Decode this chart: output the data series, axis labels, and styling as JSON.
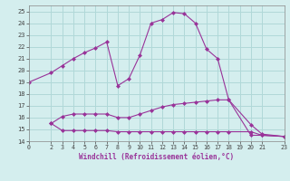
{
  "xlabel": "Windchill (Refroidissement éolien,°C)",
  "background_color": "#d4eeee",
  "grid_color": "#b0d8d8",
  "line_color": "#993399",
  "xlim": [
    0,
    23
  ],
  "ylim": [
    14,
    25.5
  ],
  "yticks": [
    14,
    15,
    16,
    17,
    18,
    19,
    20,
    21,
    22,
    23,
    24,
    25
  ],
  "xticks": [
    0,
    2,
    3,
    4,
    5,
    6,
    7,
    8,
    9,
    10,
    11,
    12,
    13,
    14,
    15,
    16,
    17,
    18,
    19,
    20,
    21,
    23
  ],
  "line1_x": [
    0,
    2,
    3,
    4,
    5,
    6,
    7,
    8,
    9,
    10,
    11,
    12,
    13,
    14,
    15,
    16,
    17,
    18,
    20,
    21,
    23
  ],
  "line1_y": [
    19.0,
    19.8,
    20.4,
    21.0,
    21.5,
    21.9,
    22.4,
    18.7,
    19.3,
    21.3,
    24.0,
    24.3,
    24.9,
    24.8,
    24.0,
    21.8,
    21.0,
    17.5,
    14.5,
    14.5,
    14.4
  ],
  "line2_x": [
    2,
    3,
    4,
    5,
    6,
    7,
    8,
    9,
    10,
    11,
    12,
    13,
    14,
    15,
    16,
    17,
    18,
    20,
    21,
    23
  ],
  "line2_y": [
    15.5,
    16.1,
    16.3,
    16.3,
    16.3,
    16.3,
    16.0,
    16.0,
    16.3,
    16.6,
    16.9,
    17.1,
    17.2,
    17.3,
    17.4,
    17.5,
    17.5,
    15.4,
    14.6,
    14.4
  ],
  "line3_x": [
    2,
    3,
    4,
    5,
    6,
    7,
    8,
    9,
    10,
    11,
    12,
    13,
    14,
    15,
    16,
    17,
    18,
    20,
    21,
    23
  ],
  "line3_y": [
    15.5,
    14.9,
    14.9,
    14.9,
    14.9,
    14.9,
    14.8,
    14.8,
    14.8,
    14.8,
    14.8,
    14.8,
    14.8,
    14.8,
    14.8,
    14.8,
    14.8,
    14.8,
    14.5,
    14.4
  ],
  "marker": "D",
  "markersize": 2.0,
  "linewidth": 0.8
}
